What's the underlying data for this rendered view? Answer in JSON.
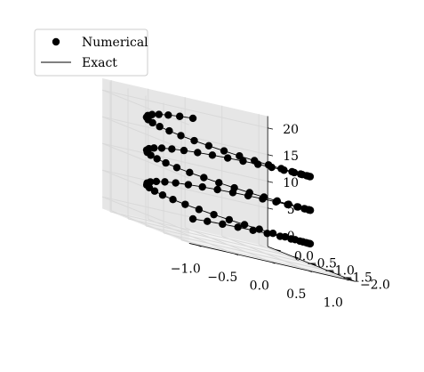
{
  "chart_data": {
    "type": "scatter",
    "projection": "3d",
    "title": "",
    "xlabel": "",
    "ylabel": "",
    "zlabel": "",
    "xlim": [
      -1.0,
      1.0
    ],
    "ylim": [
      -2.0,
      0.0
    ],
    "zlim": [
      0,
      20
    ],
    "x_ticks": [
      "−1.0",
      "−0.5",
      "0.0",
      "0.5",
      "1.0"
    ],
    "y_ticks": [
      "0.0",
      "−0.5",
      "−1.0",
      "−1.5",
      "−2.0"
    ],
    "z_ticks": [
      "0",
      "5",
      "10",
      "15",
      "20"
    ],
    "grid": true,
    "legend_position": "top-left",
    "series": [
      {
        "name": "Numerical",
        "style": "markers",
        "color": "#000000",
        "parametric": {
          "x": "sin(t)",
          "y": "cos(t) - 1",
          "z": "t",
          "t_range": [
            0,
            18.85
          ],
          "n_points": 101
        }
      },
      {
        "name": "Exact",
        "style": "line",
        "color": "#000000",
        "parametric": {
          "x": "sin(t)",
          "y": "cos(t) - 1",
          "z": "t",
          "t_range": [
            0,
            18.85
          ],
          "n_points": 400
        }
      }
    ],
    "pane_color": "#f2f2f2",
    "grid_color": "#d9d9d9"
  }
}
